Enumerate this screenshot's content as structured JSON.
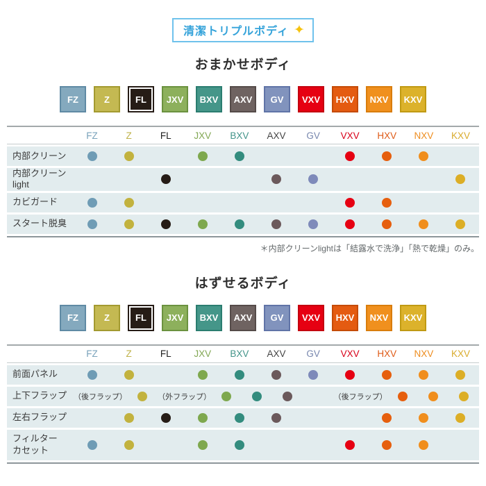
{
  "top_badge": {
    "label": "清潔トリプルボディ",
    "sparkle_icon": "✦",
    "border_color": "#6fc2ec",
    "text_color": "#35a3da",
    "sparkle_color": "#f6c20e"
  },
  "models": [
    {
      "id": "FZ",
      "label": "FZ",
      "fill": "#84a9be",
      "border": "#5f8aa4",
      "dot": "#6f9cb5",
      "header_text": "#7aa3bb",
      "inner_ring": false
    },
    {
      "id": "Z",
      "label": "Z",
      "fill": "#c4b952",
      "border": "#a39a30",
      "dot": "#c2b23e",
      "header_text": "#bfb24a",
      "inner_ring": false
    },
    {
      "id": "FL",
      "label": "FL",
      "fill": "#261c16",
      "border": "#261c16",
      "dot": "#261c16",
      "header_text": "#1e1e1e",
      "inner_ring": true
    },
    {
      "id": "JXV",
      "label": "JXV",
      "fill": "#8db05c",
      "border": "#6b923f",
      "dot": "#7ea84e",
      "header_text": "#83a855",
      "inner_ring": false
    },
    {
      "id": "BXV",
      "label": "BXV",
      "fill": "#459689",
      "border": "#2b7d70",
      "dot": "#338c7e",
      "header_text": "#43948a",
      "inner_ring": false
    },
    {
      "id": "AXV",
      "label": "AXV",
      "fill": "#6f6361",
      "border": "#554b49",
      "dot": "#6b595b",
      "header_text": "#454545",
      "inner_ring": false
    },
    {
      "id": "GV",
      "label": "GV",
      "fill": "#8193bd",
      "border": "#6074a7",
      "dot": "#7e8aba",
      "header_text": "#7887ae",
      "inner_ring": false
    },
    {
      "id": "VXV",
      "label": "VXV",
      "fill": "#e60012",
      "border": "#c4000f",
      "dot": "#e60012",
      "header_text": "#d80019",
      "inner_ring": false
    },
    {
      "id": "HXV",
      "label": "HXV",
      "fill": "#e45b11",
      "border": "#c54b06",
      "dot": "#e65f0e",
      "header_text": "#df5a16",
      "inner_ring": false
    },
    {
      "id": "NXV",
      "label": "NXV",
      "fill": "#f0901e",
      "border": "#d97d0c",
      "dot": "#f08e1d",
      "header_text": "#ee8d1f",
      "inner_ring": false
    },
    {
      "id": "KXV",
      "label": "KXV",
      "fill": "#dcb22b",
      "border": "#c09a13",
      "dot": "#dcae26",
      "header_text": "#d9ab2d",
      "inner_ring": false
    }
  ],
  "sections": [
    {
      "heading": "おまかせボディ",
      "note": "＊内部クリーンlightは「結露水で洗浄」「熱で乾燥」のみ。",
      "rows": [
        {
          "label": "内部クリーン",
          "cells": [
            "dot",
            "dot",
            "",
            "dot",
            "dot",
            "",
            "",
            "dot",
            "dot",
            "dot",
            ""
          ]
        },
        {
          "label": "内部クリーンlight",
          "cells": [
            "",
            "",
            "dot",
            "",
            "",
            "dot",
            "dot",
            "",
            "",
            "",
            "dot"
          ]
        },
        {
          "label": "カビガード",
          "cells": [
            "dot",
            "dot",
            "",
            "",
            "",
            "",
            "",
            "dot",
            "dot",
            "",
            ""
          ]
        },
        {
          "label": "スタート脱臭",
          "cells": [
            "dot",
            "dot",
            "dot",
            "dot",
            "dot",
            "dot",
            "dot",
            "dot",
            "dot",
            "dot",
            "dot"
          ]
        }
      ]
    },
    {
      "heading": "はずせるボディ",
      "note": "",
      "rows": [
        {
          "label": "前面パネル",
          "cells": [
            "dot",
            "dot",
            "",
            "dot",
            "dot",
            "dot",
            "dot",
            "dot",
            "dot",
            "dot",
            "dot"
          ]
        },
        {
          "label": "上下フラップ",
          "cells": [
            "（後フラップ）",
            "dot",
            "（外フラップ）",
            "dot",
            "dot",
            "dot",
            "",
            "（後フラップ）",
            "dot",
            "dot",
            "dot"
          ]
        },
        {
          "label": "左右フラップ",
          "cells": [
            "",
            "dot",
            "dot",
            "dot",
            "dot",
            "dot",
            "",
            "",
            "dot",
            "dot",
            "dot"
          ]
        },
        {
          "label": "フィルター\nカセット",
          "cells": [
            "dot",
            "dot",
            "",
            "dot",
            "dot",
            "",
            "",
            "dot",
            "dot",
            "dot",
            ""
          ]
        }
      ]
    }
  ],
  "table_colors": {
    "row_background": "#e2ecee",
    "table_top_border": "#a3a9ab",
    "table_bottom_border": "#8d969a"
  }
}
